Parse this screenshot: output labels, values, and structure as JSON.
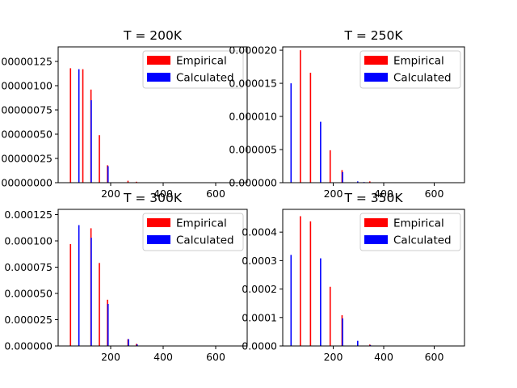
{
  "chart_data": [
    {
      "type": "bar",
      "title": "T = 200K",
      "xlabel": "",
      "ylabel": "",
      "xlim": [
        0,
        720
      ],
      "ylim": [
        0,
        1.4e-06
      ],
      "xticks": [
        {
          "v": 200,
          "label": "200"
        },
        {
          "v": 400,
          "label": "400"
        },
        {
          "v": 600,
          "label": "600"
        }
      ],
      "yticks": [
        {
          "v": 0,
          "label": "0.00000000"
        },
        {
          "v": 2.5e-07,
          "label": "0.00000025"
        },
        {
          "v": 5e-07,
          "label": "0.00000050"
        },
        {
          "v": 7.5e-07,
          "label": "0.00000075"
        },
        {
          "v": 1e-06,
          "label": "0.00000100"
        },
        {
          "v": 1.25e-06,
          "label": "0.00000125"
        }
      ],
      "legend": "top-right",
      "series": [
        {
          "name": "Empirical",
          "color": "#ff0000",
          "x": [
            47,
            94,
            125,
            157,
            188,
            266,
            298
          ],
          "values": [
            1.18e-06,
            1.17e-06,
            9.6e-07,
            4.9e-07,
            1.8e-07,
            2e-08,
            1e-08
          ]
        },
        {
          "name": "Calculated",
          "color": "#0000ff",
          "x": [
            79,
            126,
            190
          ],
          "values": [
            1.17e-06,
            8.5e-07,
            1.7e-07
          ]
        }
      ]
    },
    {
      "type": "bar",
      "title": "T = 250K",
      "xlabel": "",
      "ylabel": "",
      "xlim": [
        0,
        720
      ],
      "ylim": [
        0,
        2.05e-05
      ],
      "xticks": [
        {
          "v": 200,
          "label": "200"
        },
        {
          "v": 400,
          "label": "400"
        },
        {
          "v": 600,
          "label": "600"
        }
      ],
      "yticks": [
        {
          "v": 0,
          "label": "0.000000"
        },
        {
          "v": 5e-06,
          "label": "0.000005"
        },
        {
          "v": 1e-05,
          "label": "0.000010"
        },
        {
          "v": 1.5e-05,
          "label": "0.000015"
        },
        {
          "v": 2e-05,
          "label": "0.000020"
        }
      ],
      "legend": "top-right",
      "series": [
        {
          "name": "Empirical",
          "color": "#ff0000",
          "x": [
            70,
            110,
            188,
            235,
            345
          ],
          "values": [
            2e-05,
            1.66e-05,
            4.9e-06,
            1.9e-06,
            2e-07
          ]
        },
        {
          "name": "Calculated",
          "color": "#0000ff",
          "x": [
            33,
            150,
            237,
            297,
            322
          ],
          "values": [
            1.5e-05,
            9.2e-06,
            1.6e-06,
            2e-07,
            1e-07
          ]
        }
      ]
    },
    {
      "type": "bar",
      "title": "T = 300K",
      "xlabel": "",
      "ylabel": "",
      "xlim": [
        0,
        720
      ],
      "ylim": [
        0,
        0.00013
      ],
      "xticks": [
        {
          "v": 200,
          "label": "200"
        },
        {
          "v": 400,
          "label": "400"
        },
        {
          "v": 600,
          "label": "600"
        }
      ],
      "yticks": [
        {
          "v": 0,
          "label": "0.000000"
        },
        {
          "v": 2.5e-05,
          "label": "0.000025"
        },
        {
          "v": 5e-05,
          "label": "0.000050"
        },
        {
          "v": 7.5e-05,
          "label": "0.000075"
        },
        {
          "v": 0.0001,
          "label": "0.000100"
        },
        {
          "v": 0.000125,
          "label": "0.000125"
        }
      ],
      "legend": "top-right",
      "series": [
        {
          "name": "Empirical",
          "color": "#ff0000",
          "x": [
            47,
            125,
            157,
            188,
            266,
            298
          ],
          "values": [
            9.7e-05,
            0.000112,
            7.9e-05,
            4.4e-05,
            6.5e-06,
            2e-06
          ]
        },
        {
          "name": "Calculated",
          "color": "#0000ff",
          "x": [
            79,
            126,
            190,
            268,
            301
          ],
          "values": [
            0.000115,
            0.000103,
            4e-05,
            6.5e-06,
            1.5e-06
          ]
        }
      ]
    },
    {
      "type": "bar",
      "title": "T = 350K",
      "xlabel": "",
      "ylabel": "",
      "xlim": [
        0,
        720
      ],
      "ylim": [
        0,
        0.00048
      ],
      "xticks": [
        {
          "v": 200,
          "label": "200"
        },
        {
          "v": 400,
          "label": "400"
        },
        {
          "v": 600,
          "label": "600"
        }
      ],
      "yticks": [
        {
          "v": 0,
          "label": "0.0000"
        },
        {
          "v": 0.0001,
          "label": "0.0001"
        },
        {
          "v": 0.0002,
          "label": "0.0002"
        },
        {
          "v": 0.0003,
          "label": "0.0003"
        },
        {
          "v": 0.0004,
          "label": "0.0004"
        }
      ],
      "legend": "top-right",
      "series": [
        {
          "name": "Empirical",
          "color": "#ff0000",
          "x": [
            70,
            110,
            188,
            235,
            345
          ],
          "values": [
            0.000456,
            0.000438,
            0.000208,
            0.000108,
            5e-06
          ]
        },
        {
          "name": "Calculated",
          "color": "#0000ff",
          "x": [
            33,
            150,
            237,
            297,
            347
          ],
          "values": [
            0.00032,
            0.000308,
            9.7e-05,
            1.8e-05,
            3e-06
          ]
        }
      ]
    }
  ]
}
